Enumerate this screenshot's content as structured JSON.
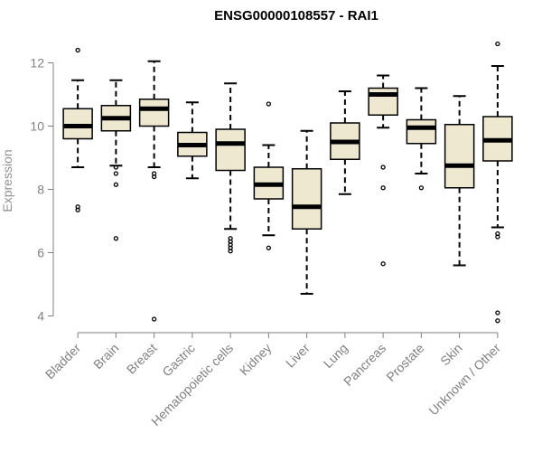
{
  "chart_data": {
    "type": "boxplot",
    "title": "ENSG00000108557 - RAI1",
    "ylabel": "Expression",
    "xlabel": "",
    "ylim": [
      3.7,
      12.9
    ],
    "yticks": [
      4,
      6,
      8,
      10,
      12
    ],
    "grid": false,
    "legend": "none",
    "box_fill": "#efe8d0",
    "categories": [
      "Bladder",
      "Brain",
      "Breast",
      "Gastric",
      "Hematopoietic cells",
      "Kidney",
      "Liver",
      "Lung",
      "Pancreas",
      "Prostate",
      "Skin",
      "Unknown / Other"
    ],
    "boxes": [
      {
        "min": 8.7,
        "q1": 9.6,
        "median": 10.0,
        "q3": 10.55,
        "max": 11.45,
        "outliers": [
          12.4,
          7.45,
          7.35
        ]
      },
      {
        "min": 8.75,
        "q1": 9.85,
        "median": 10.25,
        "q3": 10.65,
        "max": 11.45,
        "outliers": [
          8.7,
          8.5,
          8.15,
          6.45
        ]
      },
      {
        "min": 8.7,
        "q1": 10.0,
        "median": 10.55,
        "q3": 10.85,
        "max": 12.05,
        "outliers": [
          8.5,
          8.4,
          3.9
        ]
      },
      {
        "min": 8.35,
        "q1": 9.05,
        "median": 9.4,
        "q3": 9.8,
        "max": 10.75,
        "outliers": []
      },
      {
        "min": 6.75,
        "q1": 8.6,
        "median": 9.45,
        "q3": 9.9,
        "max": 11.35,
        "outliers": [
          6.45,
          6.35,
          6.25,
          6.15,
          6.05
        ]
      },
      {
        "min": 6.55,
        "q1": 7.7,
        "median": 8.15,
        "q3": 8.7,
        "max": 9.4,
        "outliers": [
          10.7,
          6.15
        ]
      },
      {
        "min": 4.7,
        "q1": 6.75,
        "median": 7.45,
        "q3": 8.65,
        "max": 9.85,
        "outliers": []
      },
      {
        "min": 7.85,
        "q1": 8.95,
        "median": 9.5,
        "q3": 10.1,
        "max": 11.1,
        "outliers": []
      },
      {
        "min": 9.95,
        "q1": 10.35,
        "median": 11.0,
        "q3": 11.2,
        "max": 11.6,
        "outliers": [
          8.7,
          8.05,
          5.65
        ]
      },
      {
        "min": 8.5,
        "q1": 9.45,
        "median": 9.95,
        "q3": 10.2,
        "max": 11.2,
        "outliers": [
          8.05
        ]
      },
      {
        "min": 5.6,
        "q1": 8.05,
        "median": 8.75,
        "q3": 10.05,
        "max": 10.95,
        "outliers": []
      },
      {
        "min": 6.8,
        "q1": 8.9,
        "median": 9.55,
        "q3": 10.3,
        "max": 11.9,
        "outliers": [
          12.6,
          6.6,
          6.5,
          4.1,
          3.85
        ]
      }
    ]
  }
}
